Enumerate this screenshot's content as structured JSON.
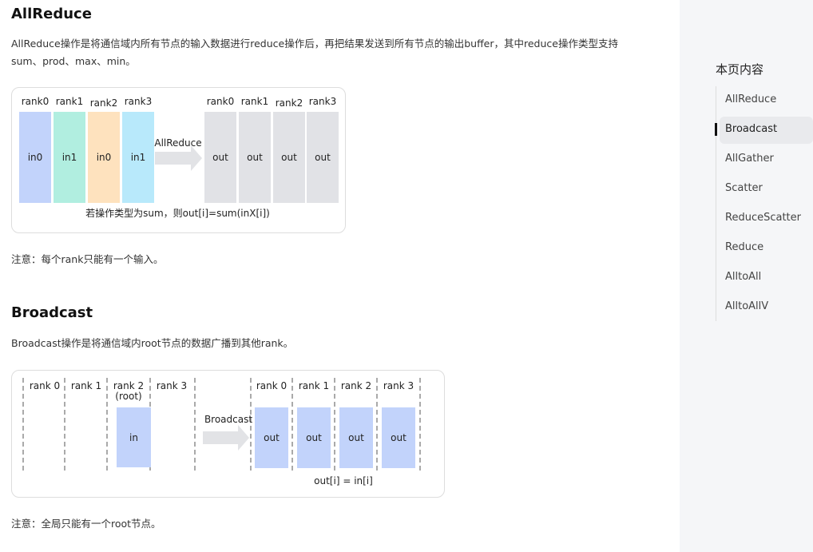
{
  "allreduce": {
    "title": "AllReduce",
    "desc": "AllReduce操作是将通信域内所有节点的输入数据进行reduce操作后，再把结果发送到所有节点的输出buffer，其中reduce操作类型支持sum、prod、max、min。",
    "diagram": {
      "in_ranks": [
        "rank0",
        "rank1",
        "rank2",
        "rank3"
      ],
      "inputs": [
        "in0",
        "in1",
        "in0",
        "in1"
      ],
      "input_colors": [
        "#c2d3fb",
        "#b1eee0",
        "#fee2be",
        "#b8e9fb"
      ],
      "op": "AllReduce",
      "out_ranks": [
        "rank0",
        "rank1",
        "rank2",
        "rank3"
      ],
      "outputs": [
        "out",
        "out",
        "out",
        "out"
      ],
      "output_color": "#e1e2e6",
      "caption": "若操作类型为sum，则out[i]=sum(inX[i])"
    },
    "note": "注意：每个rank只能有一个输入。"
  },
  "broadcast": {
    "title": "Broadcast",
    "desc": "Broadcast操作是将通信域内root节点的数据广播到其他rank。",
    "diagram": {
      "in_ranks": [
        "rank 0",
        "rank 1",
        "rank 2",
        "rank 3"
      ],
      "root_label": "(root)",
      "input": "in",
      "op": "Broadcast",
      "out_ranks": [
        "rank 0",
        "rank 1",
        "rank 2",
        "rank 3"
      ],
      "outputs": [
        "out",
        "out",
        "out",
        "out"
      ],
      "block_color": "#c2d3fb",
      "caption": "out[i] = in[i]"
    },
    "note": "注意：全局只能有一个root节点。"
  },
  "toc": {
    "title": "本页内容",
    "active": "Broadcast",
    "items": [
      "AllReduce",
      "Broadcast",
      "AllGather",
      "Scatter",
      "ReduceScatter",
      "Reduce",
      "AlltoAll",
      "AlltoAllV"
    ]
  }
}
